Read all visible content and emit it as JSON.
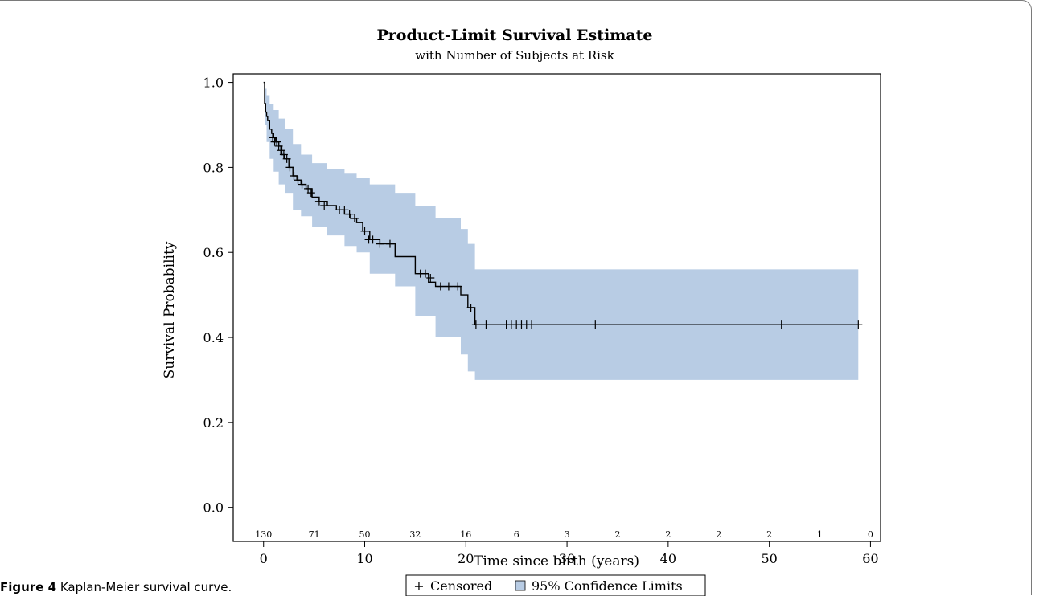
{
  "chart_data": {
    "type": "line",
    "title": "Product-Limit Survival Estimate",
    "subtitle": "with Number of Subjects at Risk",
    "xlabel": "Time since birth (years)",
    "ylabel": "Survival Probability",
    "xlim": [
      -3,
      61
    ],
    "ylim": [
      -0.08,
      1.02
    ],
    "xticks": [
      0,
      10,
      20,
      30,
      40,
      50,
      60
    ],
    "yticks": [
      "0.0",
      "0.2",
      "0.4",
      "0.6",
      "0.8",
      "1.0"
    ],
    "grid": false,
    "legend_position": "bottom-center",
    "colors": {
      "band": "#b8cce4",
      "line": "#000000"
    },
    "at_risk": {
      "times": [
        0,
        5,
        10,
        15,
        20,
        25,
        30,
        35,
        40,
        45,
        50,
        55,
        60
      ],
      "counts": [
        "130",
        "71",
        "50",
        "32",
        "16",
        "6",
        "3",
        "2",
        "2",
        "2",
        "2",
        "1",
        "0"
      ]
    },
    "series": [
      {
        "name": "Survival",
        "x": [
          0,
          0.1,
          0.2,
          0.3,
          0.4,
          0.6,
          0.8,
          1.0,
          1.2,
          1.5,
          1.8,
          2.1,
          2.5,
          2.9,
          3.3,
          3.7,
          4.2,
          4.8,
          5.5,
          6.3,
          7.2,
          8.0,
          8.6,
          9.2,
          9.8,
          10.5,
          11.5,
          13.0,
          15.0,
          16.3,
          17.0,
          19.5,
          20.2,
          20.9,
          58.8
        ],
        "y": [
          1.0,
          0.95,
          0.93,
          0.92,
          0.91,
          0.89,
          0.88,
          0.87,
          0.86,
          0.85,
          0.83,
          0.82,
          0.8,
          0.78,
          0.77,
          0.76,
          0.75,
          0.73,
          0.72,
          0.71,
          0.7,
          0.69,
          0.68,
          0.67,
          0.65,
          0.63,
          0.62,
          0.59,
          0.55,
          0.53,
          0.52,
          0.5,
          0.47,
          0.43,
          0.43
        ]
      },
      {
        "name": "95% Confidence Limits",
        "x": [
          0,
          0.1,
          0.3,
          0.6,
          1.0,
          1.5,
          2.1,
          2.9,
          3.7,
          4.8,
          6.3,
          8.0,
          9.2,
          10.5,
          13.0,
          15.0,
          17.0,
          19.5,
          20.2,
          20.9,
          58.8
        ],
        "upper": [
          1.0,
          0.985,
          0.97,
          0.95,
          0.935,
          0.915,
          0.89,
          0.855,
          0.83,
          0.81,
          0.795,
          0.785,
          0.775,
          0.76,
          0.74,
          0.71,
          0.68,
          0.655,
          0.62,
          0.56,
          0.56
        ],
        "lower": [
          1.0,
          0.9,
          0.86,
          0.82,
          0.79,
          0.76,
          0.74,
          0.7,
          0.685,
          0.66,
          0.64,
          0.615,
          0.6,
          0.55,
          0.52,
          0.45,
          0.4,
          0.36,
          0.32,
          0.3,
          0.3
        ]
      }
    ],
    "censored": {
      "x": [
        0.9,
        1.1,
        1.3,
        1.5,
        1.7,
        2.0,
        2.3,
        2.6,
        3.0,
        3.4,
        3.8,
        4.4,
        4.7,
        5.5,
        6.0,
        7.5,
        8.0,
        8.5,
        9.0,
        10.0,
        10.4,
        10.8,
        11.5,
        12.5,
        15.5,
        16.0,
        16.5,
        17.5,
        18.3,
        19.2,
        20.5,
        21.0,
        22.0,
        24.0,
        24.5,
        25.0,
        25.5,
        26.0,
        26.5,
        32.8,
        51.2,
        58.8
      ],
      "y": [
        0.87,
        0.86,
        0.86,
        0.85,
        0.84,
        0.83,
        0.82,
        0.8,
        0.78,
        0.77,
        0.76,
        0.75,
        0.74,
        0.72,
        0.71,
        0.7,
        0.7,
        0.69,
        0.68,
        0.65,
        0.63,
        0.63,
        0.62,
        0.62,
        0.55,
        0.55,
        0.54,
        0.52,
        0.52,
        0.52,
        0.47,
        0.43,
        0.43,
        0.43,
        0.43,
        0.43,
        0.43,
        0.43,
        0.43,
        0.43,
        0.43,
        0.43
      ]
    },
    "legend": {
      "censored_symbol": "+",
      "censored_label": "Censored",
      "band_label": "95% Confidence Limits"
    }
  },
  "caption": {
    "label": "Figure 4",
    "text": "Kaplan-Meier survival curve."
  }
}
